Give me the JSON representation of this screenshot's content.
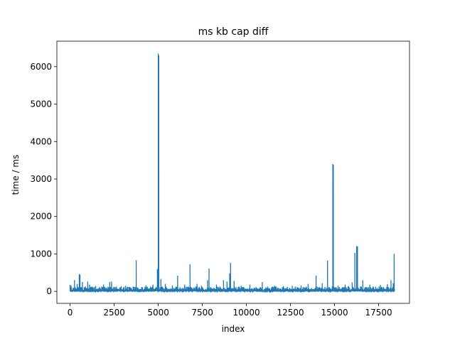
{
  "chart_data": {
    "type": "line",
    "title": "ms kb cap diff",
    "xlabel": "index",
    "ylabel": "time / ms",
    "xlim": [
      -750,
      19250
    ],
    "ylim": [
      -320,
      6680
    ],
    "xticks": [
      0,
      2500,
      5000,
      7500,
      10000,
      12500,
      15000,
      17500
    ],
    "xtick_labels": [
      "0",
      "2500",
      "5000",
      "7500",
      "10000",
      "12500",
      "15000",
      "17500"
    ],
    "yticks": [
      0,
      1000,
      2000,
      3000,
      4000,
      5000,
      6000
    ],
    "ytick_labels": [
      "0",
      "1000",
      "2000",
      "3000",
      "4000",
      "5000",
      "6000"
    ],
    "grid": false,
    "line_color": "#1f77b4",
    "series": [
      {
        "name": "",
        "x_range": [
          0,
          18400
        ],
        "baseline_max": 130,
        "spikes": [
          [
            0,
            170
          ],
          [
            60,
            150
          ],
          [
            250,
            300
          ],
          [
            400,
            200
          ],
          [
            520,
            460
          ],
          [
            560,
            450
          ],
          [
            700,
            250
          ],
          [
            1000,
            260
          ],
          [
            1100,
            180
          ],
          [
            1450,
            150
          ],
          [
            1900,
            180
          ],
          [
            2250,
            250
          ],
          [
            2350,
            260
          ],
          [
            2900,
            140
          ],
          [
            3150,
            150
          ],
          [
            3750,
            830
          ],
          [
            4300,
            160
          ],
          [
            4700,
            180
          ],
          [
            4950,
            600
          ],
          [
            5000,
            6350
          ],
          [
            5030,
            6300
          ],
          [
            5150,
            330
          ],
          [
            5400,
            200
          ],
          [
            5800,
            160
          ],
          [
            6100,
            420
          ],
          [
            6500,
            180
          ],
          [
            6800,
            720
          ],
          [
            7200,
            200
          ],
          [
            7450,
            150
          ],
          [
            7800,
            300
          ],
          [
            7880,
            610
          ],
          [
            8300,
            180
          ],
          [
            8700,
            300
          ],
          [
            8900,
            260
          ],
          [
            9050,
            480
          ],
          [
            9100,
            760
          ],
          [
            9300,
            280
          ],
          [
            9700,
            150
          ],
          [
            10200,
            180
          ],
          [
            10900,
            250
          ],
          [
            11200,
            130
          ],
          [
            11600,
            150
          ],
          [
            12100,
            140
          ],
          [
            12600,
            150
          ],
          [
            13100,
            160
          ],
          [
            13500,
            200
          ],
          [
            13950,
            420
          ],
          [
            14300,
            220
          ],
          [
            14600,
            820
          ],
          [
            14900,
            3400
          ],
          [
            14930,
            3380
          ],
          [
            15200,
            150
          ],
          [
            15600,
            180
          ],
          [
            16000,
            240
          ],
          [
            16150,
            1030
          ],
          [
            16250,
            1210
          ],
          [
            16300,
            1200
          ],
          [
            16600,
            300
          ],
          [
            17000,
            180
          ],
          [
            17600,
            170
          ],
          [
            18000,
            190
          ],
          [
            18200,
            300
          ],
          [
            18330,
            220
          ],
          [
            18380,
            1000
          ]
        ]
      }
    ]
  }
}
